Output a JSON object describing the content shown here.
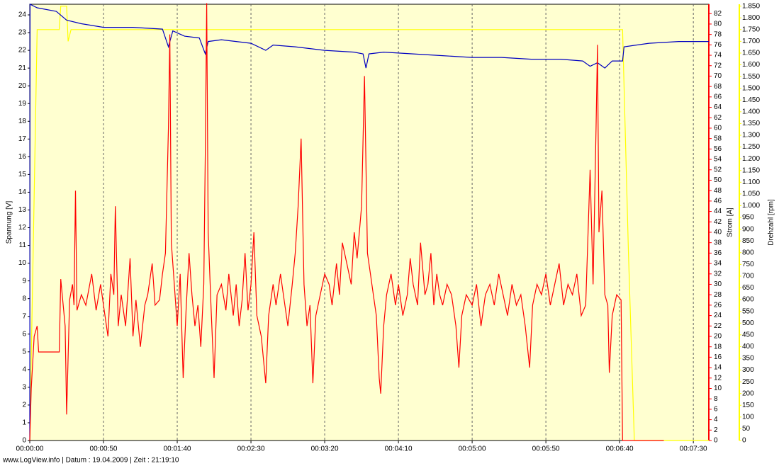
{
  "chart_data": {
    "type": "line",
    "footer": "www.LogView.info  |  Datum : 19.04.2009  |  Zeit : 21:19:10",
    "ylabel": "Spannung [V]",
    "y2label": "Strom [A]",
    "y3label": "Drehzahl [rpm]",
    "xlim": [
      0,
      460.5
    ],
    "xticks": [
      {
        "value": 0,
        "label": "00:00:00"
      },
      {
        "value": 50,
        "label": "00:00:50"
      },
      {
        "value": 100,
        "label": "00:01:40"
      },
      {
        "value": 150,
        "label": "00:02:30"
      },
      {
        "value": 200,
        "label": "00:03:20"
      },
      {
        "value": 250,
        "label": "00:04:10"
      },
      {
        "value": 300,
        "label": "00:05:00"
      },
      {
        "value": 350,
        "label": "00:05:50"
      },
      {
        "value": 400,
        "label": "00:06:40"
      },
      {
        "value": 450,
        "label": "00:07:30"
      }
    ],
    "ylim": [
      0,
      24.6
    ],
    "yticks": [
      0,
      1,
      2,
      3,
      4,
      5,
      6,
      7,
      8,
      9,
      10,
      11,
      12,
      13,
      14,
      15,
      16,
      17,
      18,
      19,
      20,
      21,
      22,
      23,
      24
    ],
    "y2lim": [
      0,
      83.8
    ],
    "y2ticks": [
      0,
      2,
      4,
      6,
      8,
      10,
      12,
      14,
      16,
      18,
      20,
      22,
      24,
      26,
      28,
      30,
      32,
      34,
      36,
      38,
      40,
      42,
      44,
      46,
      48,
      50,
      52,
      54,
      56,
      58,
      60,
      62,
      64,
      66,
      68,
      70,
      72,
      74,
      76,
      78,
      80,
      82
    ],
    "y3lim": [
      0,
      1858
    ],
    "y3ticks": [
      0,
      50,
      100,
      150,
      200,
      250,
      300,
      350,
      400,
      450,
      500,
      550,
      600,
      650,
      700,
      750,
      800,
      850,
      900,
      950,
      {
        "value": 1000,
        "label": "1.000"
      },
      {
        "value": 1050,
        "label": "1.050"
      },
      {
        "value": 1100,
        "label": "1.100"
      },
      {
        "value": 1150,
        "label": "1.150"
      },
      {
        "value": 1200,
        "label": "1.200"
      },
      {
        "value": 1250,
        "label": "1.250"
      },
      {
        "value": 1300,
        "label": "1.300"
      },
      {
        "value": 1350,
        "label": "1.350"
      },
      {
        "value": 1400,
        "label": "1.400"
      },
      {
        "value": 1450,
        "label": "1.450"
      },
      {
        "value": 1500,
        "label": "1.500"
      },
      {
        "value": 1550,
        "label": "1.550"
      },
      {
        "value": 1600,
        "label": "1.600"
      },
      {
        "value": 1650,
        "label": "1.650"
      },
      {
        "value": 1700,
        "label": "1.700"
      },
      {
        "value": 1750,
        "label": "1.750"
      },
      {
        "value": 1800,
        "label": "1.800"
      },
      {
        "value": 1850,
        "label": "1.850"
      }
    ],
    "y2color": "#ff0000",
    "y3color": "#ffff00",
    "grid": true,
    "series": [
      {
        "name": "Drehzahl",
        "color": "#ffff00",
        "axis": "y3",
        "x": [
          0,
          5,
          20,
          21,
          25,
          26,
          28,
          60,
          100,
          200,
          300,
          400,
          402,
          406,
          410,
          460.5
        ],
        "values": [
          0,
          1750,
          1750,
          1850,
          1850,
          1700,
          1750,
          1750,
          1750,
          1750,
          1750,
          1750,
          1750,
          800,
          0,
          0
        ]
      },
      {
        "name": "Spannung",
        "color": "#0000c0",
        "axis": "y",
        "x": [
          0,
          0.2,
          5,
          18,
          25,
          35,
          50,
          70,
          90,
          94,
          97,
          105,
          115,
          119,
          121,
          130,
          140,
          150,
          160,
          165,
          180,
          200,
          220,
          226,
          228,
          230,
          240,
          260,
          280,
          300,
          320,
          340,
          360,
          375,
          380,
          385,
          390,
          395,
          402,
          403,
          420,
          440,
          460.5
        ],
        "values": [
          0,
          24.6,
          24.4,
          24.2,
          23.7,
          23.5,
          23.3,
          23.3,
          23.2,
          22.2,
          23.1,
          22.8,
          22.7,
          21.8,
          22.5,
          22.6,
          22.5,
          22.4,
          22.0,
          22.3,
          22.2,
          22.0,
          21.9,
          21.8,
          21.0,
          21.8,
          21.9,
          21.8,
          21.7,
          21.6,
          21.6,
          21.5,
          21.5,
          21.4,
          21.1,
          21.3,
          21.0,
          21.4,
          21.4,
          22.2,
          22.4,
          22.5,
          22.5
        ]
      },
      {
        "name": "Strom",
        "color": "#ff0000",
        "axis": "y2",
        "x": [
          0,
          1,
          3,
          5,
          6,
          10,
          20,
          21,
          24,
          25,
          27,
          29,
          30,
          31,
          32,
          35,
          38,
          42,
          45,
          48,
          50,
          53,
          55,
          57,
          58,
          60,
          62,
          65,
          68,
          70,
          72,
          75,
          78,
          80,
          83,
          85,
          88,
          90,
          92,
          94,
          95,
          96,
          98,
          100,
          102,
          104,
          106,
          108,
          110,
          112,
          114,
          116,
          118,
          119,
          120,
          121,
          123,
          125,
          127,
          130,
          133,
          135,
          138,
          140,
          142,
          144,
          146,
          148,
          150,
          152,
          154,
          157,
          160,
          162,
          165,
          167,
          170,
          172,
          175,
          178,
          180,
          182,
          184,
          186,
          188,
          190,
          192,
          194,
          197,
          200,
          203,
          205,
          208,
          210,
          212,
          215,
          218,
          220,
          222,
          225,
          227,
          229,
          231,
          233,
          235,
          237,
          238,
          240,
          242,
          245,
          248,
          250,
          253,
          256,
          258,
          260,
          263,
          265,
          268,
          270,
          272,
          274,
          276,
          278,
          280,
          283,
          286,
          289,
          291,
          293,
          296,
          300,
          303,
          306,
          309,
          312,
          315,
          318,
          321,
          324,
          327,
          330,
          333,
          336,
          339,
          341,
          344,
          347,
          350,
          353,
          356,
          359,
          362,
          365,
          368,
          371,
          374,
          377,
          380,
          382,
          384,
          385,
          386,
          388,
          390,
          392,
          393,
          395,
          398,
          401,
          402,
          410,
          430
        ],
        "values": [
          0,
          10,
          20,
          22,
          17,
          17,
          17,
          31,
          22,
          5,
          27,
          30,
          26,
          48,
          25,
          28,
          26,
          32,
          25,
          30,
          26,
          20,
          32,
          28,
          45,
          22,
          28,
          22,
          35,
          20,
          27,
          18,
          26,
          28,
          34,
          26,
          27,
          32,
          36,
          60,
          78,
          38,
          30,
          22,
          32,
          12,
          25,
          36,
          28,
          22,
          26,
          18,
          30,
          55,
          84,
          40,
          25,
          12,
          28,
          30,
          25,
          32,
          24,
          30,
          22,
          27,
          36,
          25,
          30,
          40,
          24,
          20,
          11,
          24,
          30,
          26,
          32,
          28,
          22,
          30,
          36,
          45,
          58,
          30,
          22,
          26,
          11,
          24,
          28,
          32,
          30,
          26,
          34,
          28,
          38,
          34,
          30,
          40,
          35,
          45,
          70,
          36,
          32,
          28,
          24,
          12,
          9,
          22,
          28,
          32,
          26,
          30,
          24,
          28,
          35,
          30,
          26,
          38,
          28,
          30,
          36,
          26,
          32,
          28,
          26,
          30,
          28,
          22,
          14,
          24,
          28,
          26,
          30,
          22,
          28,
          30,
          26,
          32,
          28,
          24,
          30,
          26,
          28,
          22,
          14,
          26,
          30,
          28,
          32,
          26,
          30,
          34,
          26,
          30,
          28,
          32,
          24,
          26,
          52,
          30,
          60,
          76,
          40,
          48,
          28,
          26,
          13,
          24,
          28,
          27,
          0,
          0,
          0
        ]
      }
    ]
  }
}
